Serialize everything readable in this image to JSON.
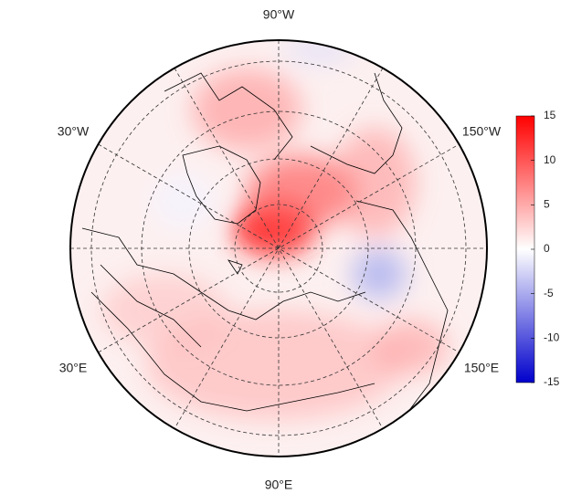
{
  "map": {
    "longitude_labels": [
      "90°W",
      "30°W",
      "150°W",
      "30°E",
      "150°E",
      "90°E"
    ]
  },
  "colorbar": {
    "range": [
      -15,
      15
    ],
    "ticks": [
      15,
      10,
      5,
      0,
      -5,
      -10,
      -15
    ],
    "colors": [
      "#0000cc",
      "#ffffff",
      "#ff0000"
    ]
  }
}
